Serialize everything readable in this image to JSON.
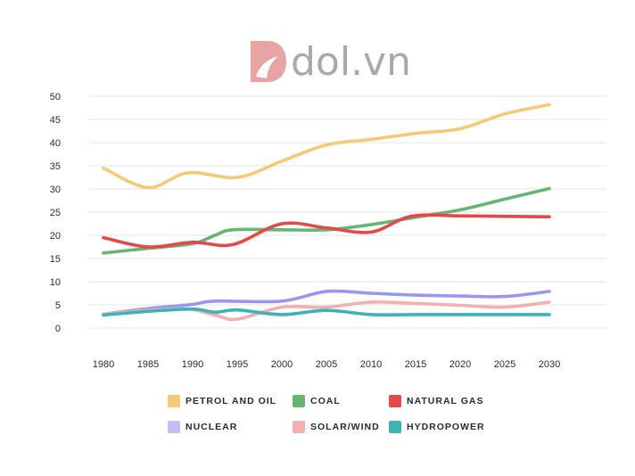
{
  "logo": {
    "text": "dol.vn",
    "icon": "dol-flame-icon",
    "color": "#e8a4a4"
  },
  "chart_data": {
    "type": "line",
    "title": "",
    "xlabel": "",
    "ylabel": "",
    "x": [
      1980,
      1985,
      1990,
      1995,
      2000,
      2005,
      2010,
      2015,
      2020,
      2025,
      2030
    ],
    "ylim": [
      0,
      50
    ],
    "yticks": [
      0,
      5,
      10,
      15,
      20,
      25,
      30,
      35,
      40,
      45,
      50
    ],
    "grid": true,
    "legend_position": "bottom",
    "series": [
      {
        "key": "petrol",
        "name": "PETROL AND OIL",
        "color": "#f7c877",
        "points": [
          [
            1980,
            34.5
          ],
          [
            1985,
            30.3
          ],
          [
            1989.5,
            33.5
          ],
          [
            1995,
            32.5
          ],
          [
            2000,
            36.0
          ],
          [
            2005,
            39.5
          ],
          [
            2010,
            40.7
          ],
          [
            2015,
            42.0
          ],
          [
            2020,
            43.0
          ],
          [
            2025,
            46.2
          ],
          [
            2030,
            48.2
          ]
        ]
      },
      {
        "key": "coal",
        "name": "COAL",
        "color": "#66b672",
        "points": [
          [
            1980,
            16.2
          ],
          [
            1985,
            17.2
          ],
          [
            1990,
            18.2
          ],
          [
            1992.5,
            20.0
          ],
          [
            1994.5,
            21.2
          ],
          [
            2000,
            21.2
          ],
          [
            2005,
            21.2
          ],
          [
            2010,
            22.3
          ],
          [
            2015,
            23.9
          ],
          [
            2020,
            25.5
          ],
          [
            2025,
            27.8
          ],
          [
            2030,
            30.1
          ]
        ]
      },
      {
        "key": "gas",
        "name": "NATURAL GAS",
        "color": "#e4484a",
        "points": [
          [
            1980,
            19.5
          ],
          [
            1985,
            17.5
          ],
          [
            1990,
            18.5
          ],
          [
            1994.5,
            18.0
          ],
          [
            2000,
            22.5
          ],
          [
            2005,
            21.6
          ],
          [
            2010,
            20.7
          ],
          [
            2014.5,
            24.1
          ],
          [
            2020,
            24.2
          ],
          [
            2025,
            24.1
          ],
          [
            2030,
            24.0
          ]
        ]
      },
      {
        "key": "nuclear",
        "name": "NUCLEAR",
        "color": "#9a96f0",
        "points": [
          [
            1980,
            3.0
          ],
          [
            1985,
            4.2
          ],
          [
            1990,
            5.1
          ],
          [
            1992.5,
            5.8
          ],
          [
            2000,
            5.8
          ],
          [
            2005,
            7.9
          ],
          [
            2010,
            7.5
          ],
          [
            2015,
            7.1
          ],
          [
            2020,
            6.9
          ],
          [
            2025,
            6.8
          ],
          [
            2030,
            7.9
          ]
        ]
      },
      {
        "key": "solar",
        "name": "SOLAR/WIND",
        "color": "#f2b1b1",
        "points": [
          [
            1980,
            3.0
          ],
          [
            1985,
            3.8
          ],
          [
            1989.5,
            4.1
          ],
          [
            1992.5,
            2.8
          ],
          [
            1995,
            1.9
          ],
          [
            2000,
            4.5
          ],
          [
            2005,
            4.5
          ],
          [
            2010,
            5.6
          ],
          [
            2015,
            5.3
          ],
          [
            2020,
            4.9
          ],
          [
            2025,
            4.5
          ],
          [
            2030,
            5.6
          ]
        ]
      },
      {
        "key": "hydro",
        "name": "HYDROPOWER",
        "color": "#3cb3b5",
        "points": [
          [
            1980,
            2.8
          ],
          [
            1985,
            3.6
          ],
          [
            1990,
            4.1
          ],
          [
            1992.5,
            3.4
          ],
          [
            1995,
            3.9
          ],
          [
            2000,
            2.9
          ],
          [
            2005,
            3.8
          ],
          [
            2010,
            2.9
          ],
          [
            2015,
            2.9
          ],
          [
            2020,
            2.9
          ],
          [
            2025,
            2.9
          ],
          [
            2030,
            2.9
          ]
        ]
      }
    ]
  }
}
